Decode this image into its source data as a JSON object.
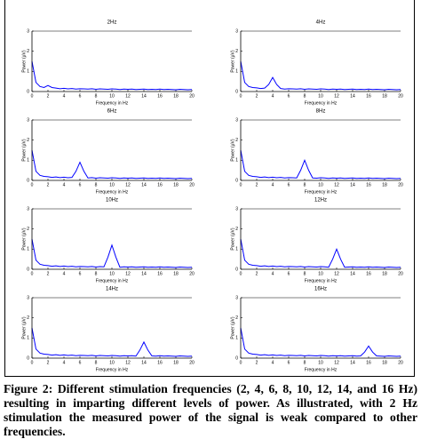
{
  "chart_data": [
    {
      "type": "line",
      "title": "2Hz",
      "x_label": "Frequency in Hz",
      "y_label": "Power (μV)",
      "color": "#0000ff",
      "xlim": [
        0,
        20
      ],
      "ylim": [
        0,
        3
      ],
      "xticks": [
        0,
        2,
        4,
        6,
        8,
        10,
        12,
        14,
        16,
        18,
        20
      ],
      "yticks": [
        0,
        1,
        2,
        3
      ],
      "x": [
        0,
        0.5,
        1,
        1.5,
        2,
        2.5,
        3,
        3.5,
        4,
        4.5,
        5,
        5.5,
        6,
        6.5,
        7,
        7.5,
        8,
        8.5,
        9,
        9.5,
        10,
        10.5,
        11,
        11.5,
        12,
        12.5,
        13,
        13.5,
        14,
        14.5,
        15,
        15.5,
        16,
        16.5,
        17,
        17.5,
        18,
        18.5,
        19,
        19.5,
        20
      ],
      "values": [
        1.5,
        0.45,
        0.25,
        0.2,
        0.3,
        0.2,
        0.17,
        0.14,
        0.16,
        0.13,
        0.15,
        0.12,
        0.14,
        0.13,
        0.12,
        0.14,
        0.11,
        0.13,
        0.12,
        0.11,
        0.13,
        0.12,
        0.1,
        0.12,
        0.11,
        0.12,
        0.1,
        0.11,
        0.12,
        0.1,
        0.11,
        0.1,
        0.12,
        0.1,
        0.11,
        0.1,
        0.09,
        0.11,
        0.1,
        0.09,
        0.1
      ]
    },
    {
      "type": "line",
      "title": "4Hz",
      "x_label": "Frequency in Hz",
      "y_label": "Power (μV)",
      "color": "#0000ff",
      "xlim": [
        0,
        20
      ],
      "ylim": [
        0,
        3
      ],
      "xticks": [
        0,
        2,
        4,
        6,
        8,
        10,
        12,
        14,
        16,
        18,
        20
      ],
      "yticks": [
        0,
        1,
        2,
        3
      ],
      "x": [
        0,
        0.5,
        1,
        1.5,
        2,
        2.5,
        3,
        3.5,
        4,
        4.5,
        5,
        5.5,
        6,
        6.5,
        7,
        7.5,
        8,
        8.5,
        9,
        9.5,
        10,
        10.5,
        11,
        11.5,
        12,
        12.5,
        13,
        13.5,
        14,
        14.5,
        15,
        15.5,
        16,
        16.5,
        17,
        17.5,
        18,
        18.5,
        19,
        19.5,
        20
      ],
      "values": [
        1.5,
        0.45,
        0.25,
        0.2,
        0.18,
        0.15,
        0.17,
        0.35,
        0.7,
        0.35,
        0.15,
        0.12,
        0.14,
        0.13,
        0.12,
        0.14,
        0.11,
        0.13,
        0.12,
        0.11,
        0.13,
        0.12,
        0.1,
        0.12,
        0.11,
        0.12,
        0.1,
        0.11,
        0.12,
        0.1,
        0.11,
        0.1,
        0.12,
        0.1,
        0.11,
        0.1,
        0.09,
        0.11,
        0.1,
        0.09,
        0.1
      ]
    },
    {
      "type": "line",
      "title": "6Hz",
      "x_label": "Frequency in Hz",
      "y_label": "Power (μV)",
      "color": "#0000ff",
      "xlim": [
        0,
        20
      ],
      "ylim": [
        0,
        3
      ],
      "xticks": [
        0,
        2,
        4,
        6,
        8,
        10,
        12,
        14,
        16,
        18,
        20
      ],
      "yticks": [
        0,
        1,
        2,
        3
      ],
      "x": [
        0,
        0.5,
        1,
        1.5,
        2,
        2.5,
        3,
        3.5,
        4,
        4.5,
        5,
        5.5,
        6,
        6.5,
        7,
        7.5,
        8,
        8.5,
        9,
        9.5,
        10,
        10.5,
        11,
        11.5,
        12,
        12.5,
        13,
        13.5,
        14,
        14.5,
        15,
        15.5,
        16,
        16.5,
        17,
        17.5,
        18,
        18.5,
        19,
        19.5,
        20
      ],
      "values": [
        1.5,
        0.45,
        0.25,
        0.2,
        0.18,
        0.15,
        0.17,
        0.14,
        0.16,
        0.13,
        0.15,
        0.45,
        0.9,
        0.45,
        0.12,
        0.14,
        0.11,
        0.13,
        0.12,
        0.11,
        0.13,
        0.12,
        0.1,
        0.12,
        0.11,
        0.12,
        0.1,
        0.11,
        0.12,
        0.1,
        0.11,
        0.1,
        0.12,
        0.1,
        0.11,
        0.1,
        0.09,
        0.11,
        0.1,
        0.09,
        0.1
      ]
    },
    {
      "type": "line",
      "title": "8Hz",
      "x_label": "Frequency in Hz",
      "y_label": "Power (μV)",
      "color": "#0000ff",
      "xlim": [
        0,
        20
      ],
      "ylim": [
        0,
        3
      ],
      "xticks": [
        0,
        2,
        4,
        6,
        8,
        10,
        12,
        14,
        16,
        18,
        20
      ],
      "yticks": [
        0,
        1,
        2,
        3
      ],
      "x": [
        0,
        0.5,
        1,
        1.5,
        2,
        2.5,
        3,
        3.5,
        4,
        4.5,
        5,
        5.5,
        6,
        6.5,
        7,
        7.5,
        8,
        8.5,
        9,
        9.5,
        10,
        10.5,
        11,
        11.5,
        12,
        12.5,
        13,
        13.5,
        14,
        14.5,
        15,
        15.5,
        16,
        16.5,
        17,
        17.5,
        18,
        18.5,
        19,
        19.5,
        20
      ],
      "values": [
        1.5,
        0.45,
        0.25,
        0.2,
        0.18,
        0.15,
        0.17,
        0.14,
        0.16,
        0.13,
        0.15,
        0.12,
        0.14,
        0.13,
        0.12,
        0.5,
        1,
        0.5,
        0.12,
        0.11,
        0.13,
        0.12,
        0.1,
        0.12,
        0.11,
        0.12,
        0.1,
        0.11,
        0.12,
        0.1,
        0.11,
        0.1,
        0.12,
        0.1,
        0.11,
        0.1,
        0.09,
        0.11,
        0.1,
        0.09,
        0.1
      ]
    },
    {
      "type": "line",
      "title": "10Hz",
      "x_label": "Frequency in Hz",
      "y_label": "Power (μV)",
      "color": "#0000ff",
      "xlim": [
        0,
        20
      ],
      "ylim": [
        0,
        3
      ],
      "xticks": [
        0,
        2,
        4,
        6,
        8,
        10,
        12,
        14,
        16,
        18,
        20
      ],
      "yticks": [
        0,
        1,
        2,
        3
      ],
      "x": [
        0,
        0.5,
        1,
        1.5,
        2,
        2.5,
        3,
        3.5,
        4,
        4.5,
        5,
        5.5,
        6,
        6.5,
        7,
        7.5,
        8,
        8.5,
        9,
        9.5,
        10,
        10.5,
        11,
        11.5,
        12,
        12.5,
        13,
        13.5,
        14,
        14.5,
        15,
        15.5,
        16,
        16.5,
        17,
        17.5,
        18,
        18.5,
        19,
        19.5,
        20
      ],
      "values": [
        1.5,
        0.45,
        0.25,
        0.2,
        0.18,
        0.15,
        0.17,
        0.14,
        0.16,
        0.13,
        0.15,
        0.12,
        0.14,
        0.13,
        0.12,
        0.14,
        0.11,
        0.13,
        0.12,
        0.6,
        1.2,
        0.6,
        0.1,
        0.12,
        0.11,
        0.12,
        0.1,
        0.11,
        0.12,
        0.1,
        0.11,
        0.1,
        0.12,
        0.1,
        0.11,
        0.1,
        0.09,
        0.11,
        0.1,
        0.09,
        0.1
      ]
    },
    {
      "type": "line",
      "title": "12Hz",
      "x_label": "Frequency in Hz",
      "y_label": "Power (μV)",
      "color": "#0000ff",
      "xlim": [
        0,
        20
      ],
      "ylim": [
        0,
        3
      ],
      "xticks": [
        0,
        2,
        4,
        6,
        8,
        10,
        12,
        14,
        16,
        18,
        20
      ],
      "yticks": [
        0,
        1,
        2,
        3
      ],
      "x": [
        0,
        0.5,
        1,
        1.5,
        2,
        2.5,
        3,
        3.5,
        4,
        4.5,
        5,
        5.5,
        6,
        6.5,
        7,
        7.5,
        8,
        8.5,
        9,
        9.5,
        10,
        10.5,
        11,
        11.5,
        12,
        12.5,
        13,
        13.5,
        14,
        14.5,
        15,
        15.5,
        16,
        16.5,
        17,
        17.5,
        18,
        18.5,
        19,
        19.5,
        20
      ],
      "values": [
        1.5,
        0.45,
        0.25,
        0.2,
        0.18,
        0.15,
        0.17,
        0.14,
        0.16,
        0.13,
        0.15,
        0.12,
        0.14,
        0.13,
        0.12,
        0.14,
        0.11,
        0.13,
        0.12,
        0.11,
        0.13,
        0.12,
        0.1,
        0.5,
        1,
        0.5,
        0.1,
        0.11,
        0.12,
        0.1,
        0.11,
        0.1,
        0.12,
        0.1,
        0.11,
        0.1,
        0.09,
        0.11,
        0.1,
        0.09,
        0.1
      ]
    },
    {
      "type": "line",
      "title": "14Hz",
      "x_label": "Frequency in Hz",
      "y_label": "Power (μV)",
      "color": "#0000ff",
      "xlim": [
        0,
        20
      ],
      "ylim": [
        0,
        3
      ],
      "xticks": [
        0,
        2,
        4,
        6,
        8,
        10,
        12,
        14,
        16,
        18,
        20
      ],
      "yticks": [
        0,
        1,
        2,
        3
      ],
      "x": [
        0,
        0.5,
        1,
        1.5,
        2,
        2.5,
        3,
        3.5,
        4,
        4.5,
        5,
        5.5,
        6,
        6.5,
        7,
        7.5,
        8,
        8.5,
        9,
        9.5,
        10,
        10.5,
        11,
        11.5,
        12,
        12.5,
        13,
        13.5,
        14,
        14.5,
        15,
        15.5,
        16,
        16.5,
        17,
        17.5,
        18,
        18.5,
        19,
        19.5,
        20
      ],
      "values": [
        1.5,
        0.45,
        0.25,
        0.2,
        0.18,
        0.15,
        0.17,
        0.14,
        0.16,
        0.13,
        0.15,
        0.12,
        0.14,
        0.13,
        0.12,
        0.14,
        0.11,
        0.13,
        0.12,
        0.11,
        0.13,
        0.12,
        0.1,
        0.12,
        0.11,
        0.12,
        0.1,
        0.4,
        0.8,
        0.4,
        0.11,
        0.1,
        0.12,
        0.1,
        0.11,
        0.1,
        0.09,
        0.11,
        0.1,
        0.09,
        0.1
      ]
    },
    {
      "type": "line",
      "title": "16Hz",
      "x_label": "Frequency in Hz",
      "y_label": "Power (μV)",
      "color": "#0000ff",
      "xlim": [
        0,
        20
      ],
      "ylim": [
        0,
        3
      ],
      "xticks": [
        0,
        2,
        4,
        6,
        8,
        10,
        12,
        14,
        16,
        18,
        20
      ],
      "yticks": [
        0,
        1,
        2,
        3
      ],
      "x": [
        0,
        0.5,
        1,
        1.5,
        2,
        2.5,
        3,
        3.5,
        4,
        4.5,
        5,
        5.5,
        6,
        6.5,
        7,
        7.5,
        8,
        8.5,
        9,
        9.5,
        10,
        10.5,
        11,
        11.5,
        12,
        12.5,
        13,
        13.5,
        14,
        14.5,
        15,
        15.5,
        16,
        16.5,
        17,
        17.5,
        18,
        18.5,
        19,
        19.5,
        20
      ],
      "values": [
        1.5,
        0.45,
        0.25,
        0.2,
        0.18,
        0.15,
        0.17,
        0.14,
        0.16,
        0.13,
        0.15,
        0.12,
        0.14,
        0.13,
        0.12,
        0.14,
        0.11,
        0.13,
        0.12,
        0.11,
        0.13,
        0.12,
        0.1,
        0.12,
        0.11,
        0.12,
        0.1,
        0.11,
        0.12,
        0.1,
        0.11,
        0.3,
        0.6,
        0.3,
        0.11,
        0.1,
        0.09,
        0.11,
        0.1,
        0.09,
        0.1
      ]
    }
  ],
  "caption": "Figure 2: Different stimulation frequencies (2, 4, 6, 8, 10, 12, 14, and 16 Hz) resulting in imparting different levels of power. As illustrated, with 2 Hz stimulation the measured power of the signal is weak compared to other frequencies."
}
